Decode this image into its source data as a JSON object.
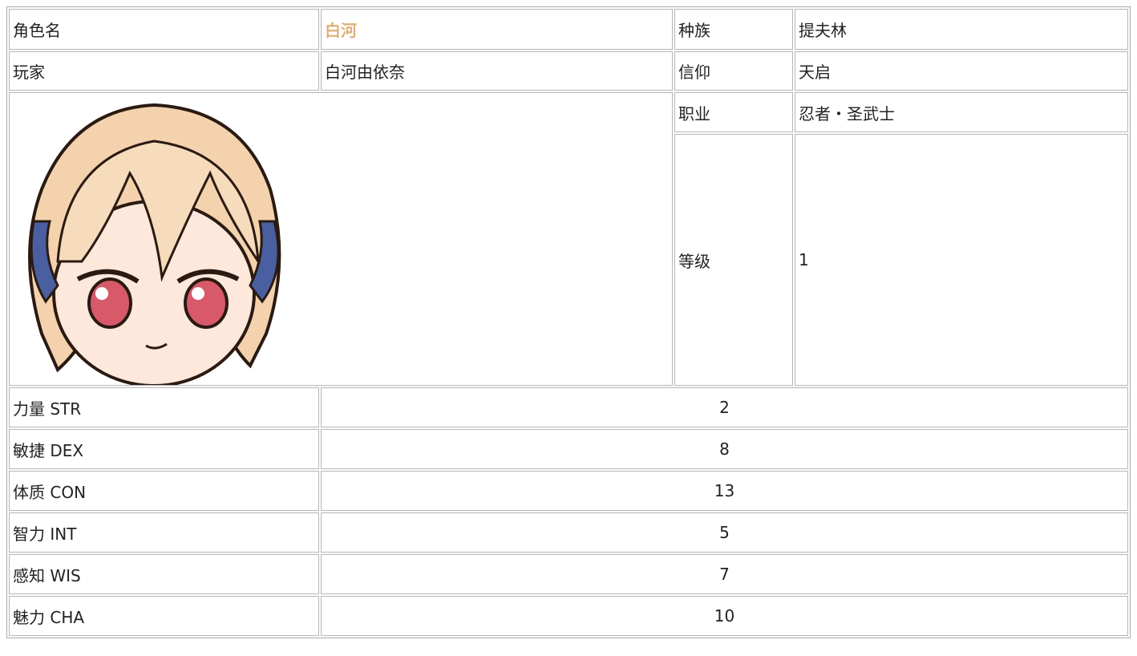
{
  "header_rows": [
    [
      "角色名",
      "白河",
      "种族",
      "提夫林"
    ],
    [
      "玩家",
      "白河由依奈",
      "信仰",
      "天启"
    ]
  ],
  "side_rows": [
    [
      "职业",
      "忍者・圣武士"
    ],
    [
      "等级",
      1
    ]
  ],
  "stats": [
    [
      "力量 STR",
      2
    ],
    [
      "敏捷 DEX",
      8
    ],
    [
      "体质 CON",
      13
    ],
    [
      "智力 INT",
      5
    ],
    [
      "感知 WIS",
      7
    ],
    [
      "魅力 CHA",
      10
    ]
  ]
}
